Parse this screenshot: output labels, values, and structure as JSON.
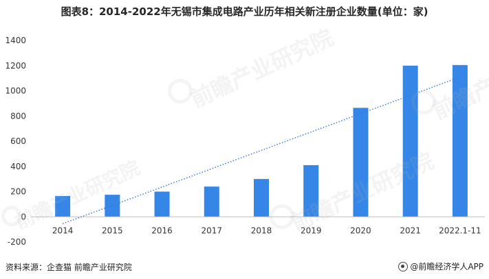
{
  "title": "图表8：2014-2022年无锡市集成电路产业历年相关新注册企业数量(单位：家)",
  "source": "资料来源：企查猫 前瞻产业研究院",
  "brand": "@前瞻经济学人APP",
  "watermark": "前瞻产业研究院",
  "colors": {
    "bar": "#3586e6",
    "trend": "#3a79d6",
    "axis_text": "#333333"
  },
  "chart_data": {
    "type": "bar",
    "title": "图表8：2014-2022年无锡市集成电路产业历年相关新注册企业数量(单位：家)",
    "categories": [
      "2014",
      "2015",
      "2016",
      "2017",
      "2018",
      "2019",
      "2020",
      "2021",
      "2022.1-11"
    ],
    "values": [
      165,
      175,
      200,
      240,
      300,
      410,
      865,
      1200,
      1205
    ],
    "ylim": [
      -200,
      1400
    ],
    "yticks": [
      "-200",
      "0",
      "200",
      "400",
      "600",
      "800",
      "1000",
      "1200",
      "1400"
    ],
    "ytick_values": [
      -200,
      0,
      200,
      400,
      600,
      800,
      1000,
      1200,
      1400
    ],
    "trendline": {
      "style": "dotted linear",
      "start": -55,
      "end": 1110
    },
    "grid": false,
    "legend": "none"
  }
}
